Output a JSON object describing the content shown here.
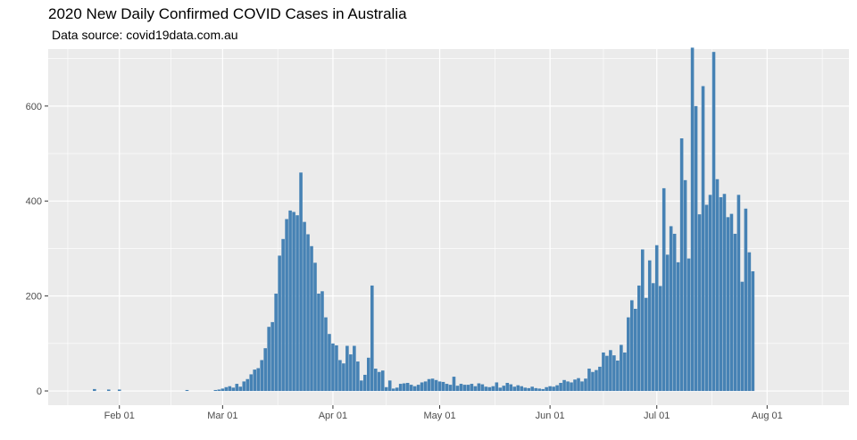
{
  "chart_data": {
    "type": "bar",
    "title": "2020 New Daily Confirmed COVID Cases in Australia",
    "subtitle": "Data source: covid19data.com.au",
    "xlabel": "",
    "ylabel": "",
    "x_start": "2020-01-25",
    "xlim": [
      "2020-01-12",
      "2020-08-24"
    ],
    "ylim": [
      -30,
      720
    ],
    "y_ticks": [
      0,
      200,
      400,
      600
    ],
    "x_ticks": [
      {
        "date": "2020-02-01",
        "label": "Feb 01"
      },
      {
        "date": "2020-03-01",
        "label": "Mar 01"
      },
      {
        "date": "2020-04-01",
        "label": "Apr 01"
      },
      {
        "date": "2020-05-01",
        "label": "May 01"
      },
      {
        "date": "2020-06-01",
        "label": "Jun 01"
      },
      {
        "date": "2020-07-01",
        "label": "Jul 01"
      },
      {
        "date": "2020-08-01",
        "label": "Aug 01"
      }
    ],
    "grid": true,
    "colors": {
      "bar": "#4682B4",
      "highlight": "#FF0000",
      "panel": "#EBEBEB",
      "grid": "#FFFFFF"
    },
    "highlight_dates": [
      "2020-07-30",
      "2020-08-02",
      "2020-08-05"
    ],
    "values": [
      4,
      0,
      0,
      0,
      3,
      0,
      0,
      3,
      0,
      0,
      0,
      0,
      0,
      0,
      0,
      0,
      0,
      0,
      0,
      0,
      0,
      0,
      0,
      0,
      0,
      0,
      2,
      0,
      0,
      0,
      0,
      0,
      0,
      0,
      2,
      3,
      5,
      8,
      10,
      7,
      15,
      9,
      20,
      25,
      35,
      45,
      48,
      65,
      90,
      135,
      145,
      205,
      285,
      320,
      362,
      380,
      377,
      370,
      460,
      356,
      330,
      305,
      270,
      205,
      210,
      155,
      120,
      100,
      96,
      65,
      58,
      95,
      77,
      95,
      62,
      22,
      34,
      70,
      222,
      47,
      40,
      43,
      8,
      22,
      5,
      7,
      15,
      16,
      17,
      13,
      10,
      13,
      18,
      20,
      25,
      26,
      23,
      20,
      19,
      15,
      13,
      30,
      11,
      15,
      13,
      13,
      15,
      10,
      16,
      14,
      9,
      8,
      10,
      18,
      7,
      11,
      17,
      14,
      9,
      12,
      10,
      7,
      6,
      9,
      6,
      5,
      4,
      8,
      10,
      9,
      12,
      17,
      23,
      20,
      18,
      24,
      27,
      20,
      26,
      47,
      40,
      44,
      51,
      81,
      74,
      86,
      75,
      64,
      97,
      81,
      155,
      191,
      173,
      222,
      298,
      196,
      275,
      227,
      307,
      221,
      427,
      287,
      347,
      331,
      271,
      532,
      444,
      279,
      723,
      600,
      372,
      642,
      392,
      413,
      714,
      446,
      408,
      415,
      366,
      373,
      331,
      413,
      230,
      384,
      292,
      252
    ]
  }
}
